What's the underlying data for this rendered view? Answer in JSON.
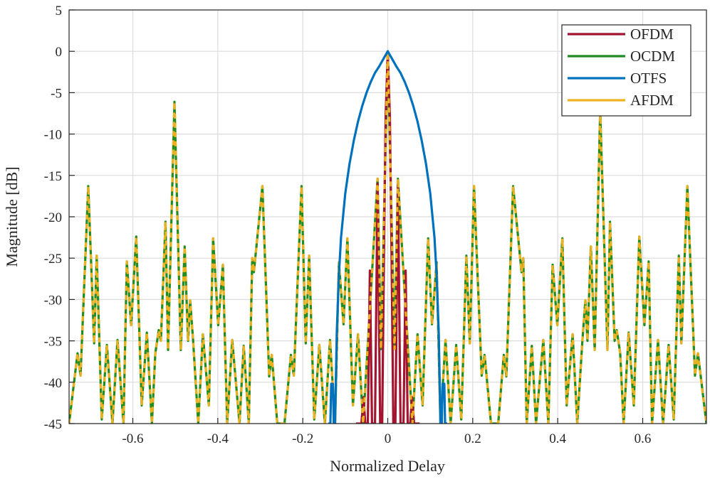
{
  "chart_data": {
    "type": "line",
    "title": "",
    "xlabel": "Normalized Delay",
    "ylabel": "Magnitude [dB]",
    "xlim": [
      -0.75,
      0.75
    ],
    "ylim": [
      -45,
      5
    ],
    "xticks": [
      -0.6,
      -0.4,
      -0.2,
      0,
      0.2,
      0.4,
      0.6
    ],
    "xtick_labels": [
      "-0.6",
      "-0.4",
      "-0.2",
      "0",
      "0.2",
      "0.4",
      "0.6"
    ],
    "yticks": [
      5,
      0,
      -5,
      -10,
      -15,
      -20,
      -25,
      -30,
      -35,
      -40,
      -45
    ],
    "ytick_labels": [
      "5",
      "0",
      "-5",
      "-10",
      "-15",
      "-20",
      "-25",
      "-30",
      "-35",
      "-40",
      "-45"
    ],
    "grid": true,
    "legend_position": "top-right",
    "series": [
      {
        "name": "OFDM",
        "color": "#A2142F",
        "style": "solid",
        "x": [
          -0.075,
          -0.062,
          -0.057,
          -0.053,
          -0.047,
          -0.042,
          -0.037,
          -0.03,
          -0.024,
          -0.018,
          -0.013,
          -0.009,
          -0.005,
          0,
          0.005,
          0.009,
          0.013,
          0.018,
          0.024,
          0.03,
          0.037,
          0.042,
          0.047,
          0.053,
          0.057,
          0.062,
          0.075
        ],
        "y": [
          -45,
          -45,
          -41.8,
          -45,
          -45,
          -26.5,
          -45,
          -45,
          -16,
          -45,
          -45,
          -25,
          -8,
          0,
          -8,
          -25,
          -45,
          -45,
          -16,
          -45,
          -45,
          -26.5,
          -45,
          -45,
          -41.8,
          -45,
          -45
        ]
      },
      {
        "name": "OCDM",
        "color": "#228B22",
        "style": "solid",
        "x": [
          -0.75,
          -0.73,
          -0.723,
          -0.705,
          -0.691,
          -0.685,
          -0.673,
          -0.661,
          -0.648,
          -0.636,
          -0.622,
          -0.614,
          -0.604,
          -0.592,
          -0.579,
          -0.567,
          -0.555,
          -0.547,
          -0.539,
          -0.534,
          -0.523,
          -0.517,
          -0.502,
          -0.487,
          -0.478,
          -0.47,
          -0.465,
          -0.458,
          -0.446,
          -0.435,
          -0.421,
          -0.411,
          -0.399,
          -0.388,
          -0.378,
          -0.366,
          -0.349,
          -0.339,
          -0.327,
          -0.319,
          -0.315,
          -0.295,
          -0.279,
          -0.273,
          -0.26,
          -0.243,
          -0.228,
          -0.221,
          -0.203,
          -0.193,
          -0.185,
          -0.173,
          -0.161,
          -0.148,
          -0.136,
          -0.124,
          -0.115,
          -0.104,
          -0.095,
          -0.082,
          -0.07,
          -0.058,
          -0.024,
          -0.016,
          0,
          0.016,
          0.024,
          0.058,
          0.07,
          0.082,
          0.095,
          0.104,
          0.115,
          0.124,
          0.136,
          0.148,
          0.161,
          0.173,
          0.185,
          0.193,
          0.203,
          0.221,
          0.228,
          0.243,
          0.26,
          0.273,
          0.279,
          0.295,
          0.315,
          0.319,
          0.327,
          0.339,
          0.349,
          0.366,
          0.378,
          0.388,
          0.399,
          0.411,
          0.421,
          0.435,
          0.446,
          0.458,
          0.465,
          0.47,
          0.478,
          0.487,
          0.5,
          0.517,
          0.523,
          0.534,
          0.539,
          0.547,
          0.555,
          0.567,
          0.579,
          0.592,
          0.604,
          0.614,
          0.622,
          0.636,
          0.648,
          0.661,
          0.673,
          0.685,
          0.691,
          0.705,
          0.723,
          0.73,
          0.75
        ],
        "y": [
          -45,
          -36.5,
          -39.2,
          -16.3,
          -35.3,
          -24.7,
          -44.5,
          -35.5,
          -45,
          -34.9,
          -45,
          -25.4,
          -33.1,
          -22.4,
          -42.8,
          -34,
          -45,
          -36.5,
          -33.7,
          -35,
          -20.6,
          -36.1,
          -6.1,
          -36.1,
          -23.6,
          -35,
          -30.1,
          -35,
          -45,
          -34.2,
          -42.8,
          -22.6,
          -33.1,
          -25.8,
          -45,
          -34.9,
          -45,
          -35.6,
          -45,
          -25,
          -26.7,
          -16.3,
          -39.3,
          -36.7,
          -45,
          -45,
          -36.7,
          -39.2,
          -16.3,
          -35.3,
          -24.7,
          -44.5,
          -35.5,
          -45,
          -34.9,
          -45,
          -25.5,
          -33,
          -22.6,
          -42.8,
          -34.2,
          -45,
          -15.4,
          -36,
          0,
          -36,
          -15.4,
          -45,
          -34.2,
          -42.8,
          -22.6,
          -33,
          -25.5,
          -45,
          -34.9,
          -45,
          -35.5,
          -44.5,
          -24.7,
          -35.3,
          -16.3,
          -39.2,
          -36.7,
          -45,
          -45,
          -36.7,
          -39.3,
          -16.3,
          -26.7,
          -25,
          -45,
          -35.6,
          -45,
          -34.9,
          -45,
          -25.8,
          -33.1,
          -22.6,
          -42.8,
          -34.2,
          -45,
          -35,
          -30.1,
          -35,
          -23.6,
          -36.1,
          -7.2,
          -36.1,
          -20.6,
          -35,
          -33.7,
          -36.5,
          -45,
          -34,
          -42.8,
          -22.4,
          -33.1,
          -25.4,
          -45,
          -34.9,
          -45,
          -35.5,
          -44.5,
          -24.7,
          -35.3,
          -16.3,
          -39.2,
          -36.5,
          -45
        ]
      },
      {
        "name": "OTFS",
        "color": "#0072BD",
        "style": "solid",
        "x": [
          -0.14,
          -0.135,
          -0.133,
          -0.129,
          -0.127,
          -0.124,
          -0.12,
          -0.115,
          -0.11,
          -0.1,
          -0.09,
          -0.08,
          -0.07,
          -0.06,
          -0.05,
          -0.04,
          -0.03,
          -0.02,
          -0.01,
          0,
          0.01,
          0.02,
          0.03,
          0.04,
          0.05,
          0.06,
          0.07,
          0.08,
          0.09,
          0.1,
          0.11,
          0.115,
          0.12,
          0.124,
          0.127,
          0.129,
          0.133,
          0.135,
          0.14
        ],
        "y": [
          -45,
          -45,
          -40.2,
          -40.2,
          -45,
          -45,
          -34,
          -27,
          -22.5,
          -17.2,
          -13.6,
          -10.8,
          -8.5,
          -6.6,
          -5,
          -3.7,
          -2.6,
          -1.8,
          -0.9,
          0,
          -0.9,
          -1.8,
          -2.6,
          -3.7,
          -5,
          -6.6,
          -8.5,
          -10.8,
          -13.6,
          -17.2,
          -22.5,
          -27,
          -34,
          -45,
          -45,
          -40.2,
          -40.2,
          -45,
          -45
        ]
      },
      {
        "name": "AFDM",
        "color": "#EDB120",
        "style": "dashed",
        "same_as": "OCDM"
      }
    ]
  }
}
